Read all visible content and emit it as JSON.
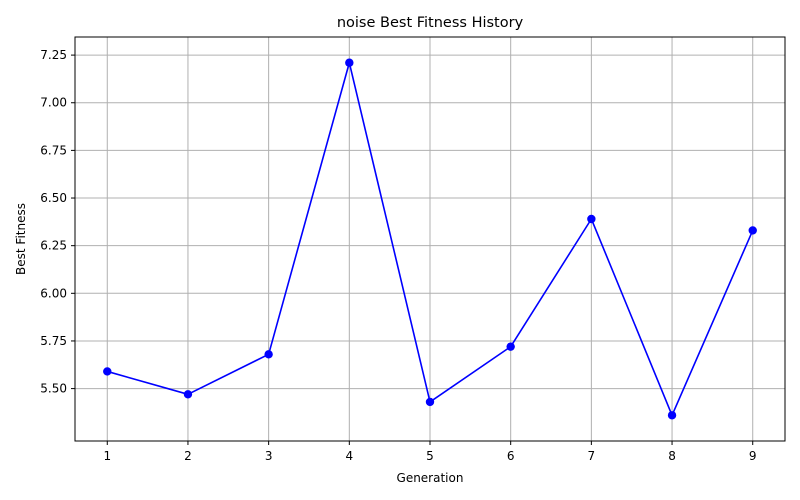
{
  "chart_data": {
    "type": "line",
    "title": "noise Best Fitness History",
    "xlabel": "Generation",
    "ylabel": "Best Fitness",
    "x": [
      1,
      2,
      3,
      4,
      5,
      6,
      7,
      8,
      9
    ],
    "series": [
      {
        "values": [
          5.59,
          5.47,
          5.68,
          7.21,
          5.43,
          5.72,
          6.39,
          5.36,
          6.33
        ],
        "color": "#0000ff",
        "marker": "circle"
      }
    ],
    "xlim": [
      0.6,
      9.4
    ],
    "ylim": [
      5.225,
      7.345
    ],
    "xticks": [
      "1",
      "2",
      "3",
      "4",
      "5",
      "6",
      "7",
      "8",
      "9"
    ],
    "xtick_values": [
      1,
      2,
      3,
      4,
      5,
      6,
      7,
      8,
      9
    ],
    "yticks": [
      "5.50",
      "5.75",
      "6.00",
      "6.25",
      "6.50",
      "6.75",
      "7.00",
      "7.25"
    ],
    "ytick_values": [
      5.5,
      5.75,
      6.0,
      6.25,
      6.5,
      6.75,
      7.0,
      7.25
    ],
    "grid": true,
    "grid_color": "#b0b0b0"
  }
}
